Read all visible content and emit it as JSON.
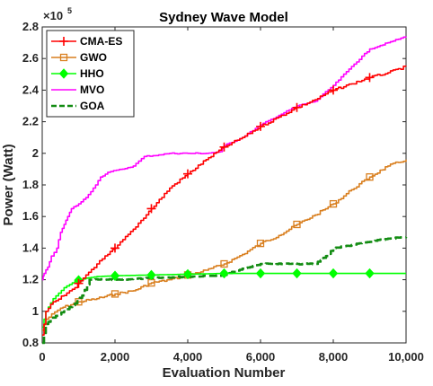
{
  "chart_data": {
    "type": "line",
    "title": "Sydney Wave Model",
    "xlabel": "Evaluation Number",
    "ylabel": "Power (Watt)",
    "xlim": [
      0,
      10000
    ],
    "ylim": [
      0.8,
      2.8
    ],
    "y_multiplier_base": "×10",
    "y_multiplier_exp": "5",
    "x_ticks": [
      {
        "value": 0,
        "label": "0"
      },
      {
        "value": 2000,
        "label": "2,000"
      },
      {
        "value": 4000,
        "label": "4,000"
      },
      {
        "value": 6000,
        "label": "6,000"
      },
      {
        "value": 8000,
        "label": "8,000"
      },
      {
        "value": 10000,
        "label": "10,000"
      }
    ],
    "y_ticks": [
      {
        "value": 0.8,
        "label": "0.8"
      },
      {
        "value": 1.0,
        "label": "1"
      },
      {
        "value": 1.2,
        "label": "1.2"
      },
      {
        "value": 1.4,
        "label": "1.4"
      },
      {
        "value": 1.6,
        "label": "1.6"
      },
      {
        "value": 1.8,
        "label": "1.8"
      },
      {
        "value": 2.0,
        "label": "2"
      },
      {
        "value": 2.2,
        "label": "2.2"
      },
      {
        "value": 2.4,
        "label": "2.4"
      },
      {
        "value": 2.6,
        "label": "2.6"
      },
      {
        "value": 2.8,
        "label": "2.8"
      }
    ],
    "grid": false,
    "legend_position": "top-left",
    "series": [
      {
        "name": "CMA-ES",
        "color": "#ff0000",
        "dash": "solid",
        "marker": "plus",
        "x": [
          0,
          100,
          300,
          600,
          900,
          1200,
          1500,
          1800,
          2000,
          2500,
          3000,
          3500,
          4000,
          4500,
          5000,
          5500,
          6000,
          6500,
          7000,
          7500,
          8000,
          8500,
          9000,
          9500,
          10000
        ],
        "y": [
          0.85,
          1.0,
          1.06,
          1.1,
          1.15,
          1.23,
          1.3,
          1.36,
          1.4,
          1.52,
          1.65,
          1.78,
          1.87,
          1.96,
          2.04,
          2.1,
          2.17,
          2.23,
          2.29,
          2.34,
          2.4,
          2.44,
          2.48,
          2.51,
          2.55
        ]
      },
      {
        "name": "GWO",
        "color": "#d97f1f",
        "dash": "solid",
        "marker": "square",
        "x": [
          0,
          100,
          500,
          1000,
          1500,
          2000,
          2500,
          3000,
          3500,
          4000,
          4500,
          5000,
          5500,
          6000,
          6500,
          7000,
          7500,
          8000,
          8500,
          9000,
          9500,
          10000
        ],
        "y": [
          0.88,
          0.95,
          1.02,
          1.06,
          1.08,
          1.11,
          1.13,
          1.18,
          1.2,
          1.23,
          1.26,
          1.3,
          1.36,
          1.43,
          1.48,
          1.55,
          1.61,
          1.68,
          1.77,
          1.85,
          1.92,
          1.96
        ]
      },
      {
        "name": "HHO",
        "color": "#00ff00",
        "dash": "solid",
        "marker": "diamond",
        "x": [
          0,
          100,
          300,
          600,
          900,
          1200,
          1500,
          2000,
          3000,
          4000,
          5000,
          6000,
          7000,
          8000,
          9000,
          10000
        ],
        "y": [
          0.9,
          1.0,
          1.08,
          1.15,
          1.19,
          1.21,
          1.22,
          1.225,
          1.23,
          1.235,
          1.24,
          1.24,
          1.24,
          1.24,
          1.24,
          1.24
        ]
      },
      {
        "name": "MVO",
        "color": "#ff00ff",
        "dash": "solid",
        "marker": "none",
        "x": [
          0,
          50,
          150,
          250,
          400,
          500,
          600,
          700,
          800,
          1000,
          1200,
          1400,
          1600,
          1800,
          2200,
          2500,
          2800,
          3200,
          3500,
          4000,
          4500,
          4900,
          5000,
          5500,
          6000,
          6500,
          7000,
          7500,
          8000,
          8500,
          9000,
          9500,
          10000
        ],
        "y": [
          1.2,
          1.24,
          1.28,
          1.35,
          1.4,
          1.5,
          1.55,
          1.6,
          1.65,
          1.68,
          1.72,
          1.78,
          1.85,
          1.88,
          1.9,
          1.92,
          1.98,
          1.99,
          2.0,
          2.0,
          2.0,
          2.01,
          2.05,
          2.1,
          2.18,
          2.24,
          2.3,
          2.33,
          2.43,
          2.55,
          2.66,
          2.7,
          2.74
        ]
      },
      {
        "name": "GOA",
        "color": "#138c13",
        "dash": "dashed",
        "marker": "none",
        "x": [
          0,
          100,
          300,
          600,
          900,
          1100,
          1300,
          2000,
          3000,
          4000,
          5000,
          5500,
          6000,
          7000,
          7500,
          7800,
          8000,
          8500,
          9000,
          9500,
          10000
        ],
        "y": [
          0.8,
          0.92,
          0.96,
          1.0,
          1.05,
          1.1,
          1.2,
          1.2,
          1.21,
          1.22,
          1.23,
          1.27,
          1.3,
          1.3,
          1.3,
          1.35,
          1.4,
          1.42,
          1.44,
          1.46,
          1.47
        ]
      }
    ]
  }
}
